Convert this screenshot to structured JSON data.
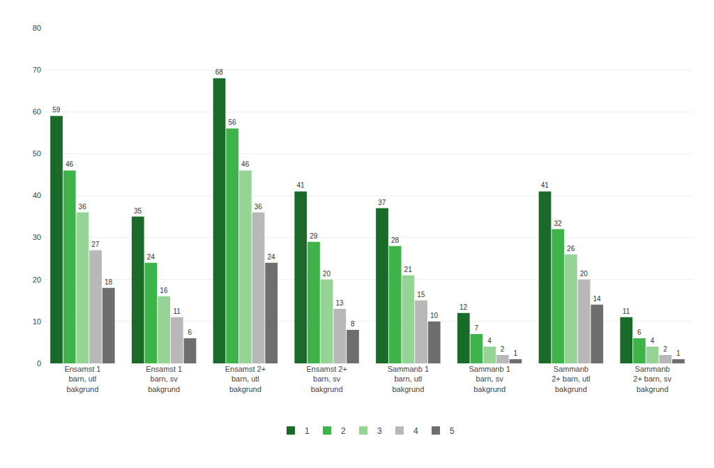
{
  "chart_data": {
    "type": "bar",
    "categories": [
      "Ensamst 1\nbarn, utl\nbakgrund",
      "Ensamst 1\nbarn, sv\nbakgrund",
      "Ensamst 2+\nbarn, utl\nbakgrund",
      "Ensamst 2+\nbarn, sv\nbakgrund",
      "Sammanb 1\nbarn, utl\nbakgrund",
      "Sammanb 1\nbarn, sv\nbakgrund",
      "Sammanb\n2+ barn, utl\nbakgrund",
      "Sammanb\n2+ barn, sv\nbakgrund"
    ],
    "series": [
      {
        "name": "1",
        "color": "#1a6b2a",
        "values": [
          59,
          35,
          68,
          41,
          37,
          12,
          41,
          11
        ]
      },
      {
        "name": "2",
        "color": "#3db34a",
        "values": [
          46,
          24,
          56,
          29,
          28,
          7,
          32,
          6
        ]
      },
      {
        "name": "3",
        "color": "#96d496",
        "values": [
          36,
          16,
          46,
          20,
          21,
          4,
          26,
          4
        ]
      },
      {
        "name": "4",
        "color": "#b8b8b8",
        "values": [
          27,
          11,
          36,
          13,
          15,
          2,
          20,
          2
        ]
      },
      {
        "name": "5",
        "color": "#6e6e6e",
        "values": [
          18,
          6,
          24,
          8,
          10,
          1,
          14,
          1
        ]
      }
    ],
    "ylim": [
      0,
      80
    ],
    "yticks": [
      0,
      10,
      20,
      30,
      40,
      50,
      60,
      70,
      80
    ],
    "grid": true,
    "legend": "bottom",
    "data_labels": true
  }
}
